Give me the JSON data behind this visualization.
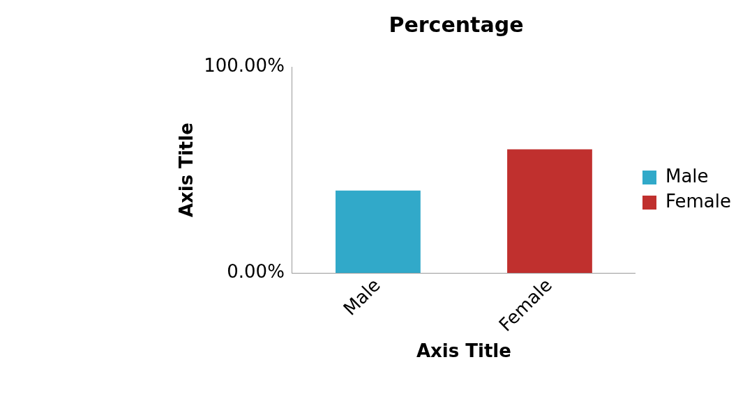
{
  "chart_data": {
    "type": "bar",
    "title": "Percentage",
    "xlabel": "Axis Title",
    "ylabel": "Axis Title",
    "categories": [
      "Male",
      "Female"
    ],
    "series": [
      {
        "name": "Male",
        "color": "#31a9c9",
        "values": [
          40,
          null
        ]
      },
      {
        "name": "Female",
        "color": "#c0302e",
        "values": [
          null,
          60
        ]
      }
    ],
    "ylim": [
      0,
      100
    ],
    "yticks": [
      {
        "value": 0,
        "label": "0.00%"
      },
      {
        "value": 100,
        "label": "100.00%"
      }
    ],
    "grid": false,
    "legend": "right"
  }
}
